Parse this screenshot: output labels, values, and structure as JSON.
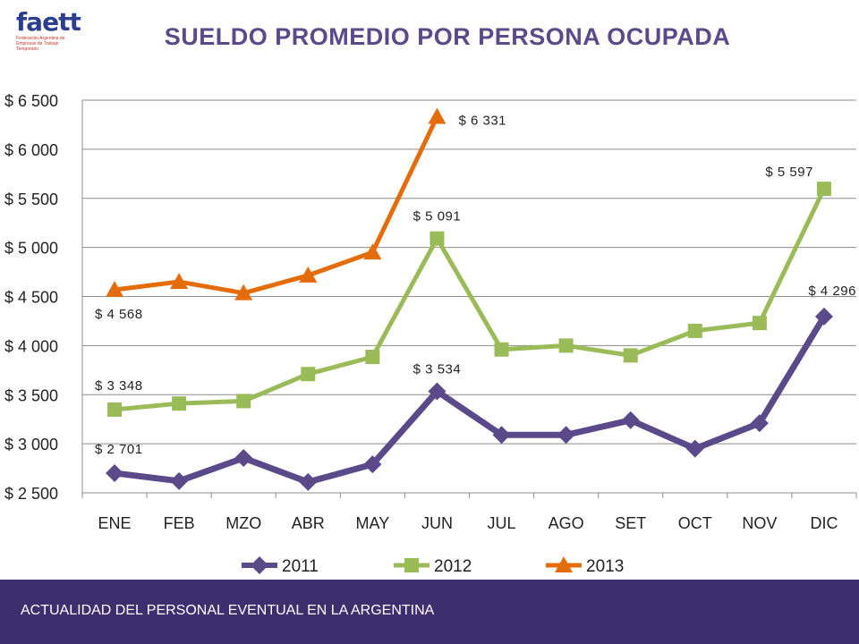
{
  "logo": {
    "word": "faett",
    "subtitle": "Federación Argentina de Empresas de Trabajo Temporario"
  },
  "title": "SUELDO PROMEDIO POR PERSONA OCUPADA",
  "footer": {
    "text": "ACTUALIDAD DEL PERSONAL EVENTUAL EN LA ARGENTINA"
  },
  "colors": {
    "title": "#5b4a8a",
    "footer_bg": "#3b2f6e",
    "series_2011": "#5b4a8a",
    "series_2012": "#9bbb59",
    "series_2013": "#e46c0a"
  },
  "chart_data": {
    "type": "line",
    "title": "SUELDO PROMEDIO POR PERSONA OCUPADA",
    "categories": [
      "ENE",
      "FEB",
      "MZO",
      "ABR",
      "MAY",
      "JUN",
      "JUL",
      "AGO",
      "SET",
      "OCT",
      "NOV",
      "DIC"
    ],
    "y_ticks": [
      "$ 2 500",
      "$ 3 000",
      "$ 3 500",
      "$ 4 000",
      "$ 4 500",
      "$ 5 000",
      "$ 5 500",
      "$ 6 000",
      "$ 6 500"
    ],
    "ylim": [
      2500,
      6500
    ],
    "grid": "horizontal",
    "legend": "bottom",
    "series": [
      {
        "name": "2011",
        "color": "#5b4a8a",
        "marker": "diamond",
        "values": [
          2701,
          2620,
          2855,
          2610,
          2790,
          3534,
          3090,
          3090,
          3240,
          2950,
          3210,
          4296
        ]
      },
      {
        "name": "2012",
        "color": "#9bbb59",
        "marker": "square",
        "values": [
          3348,
          3410,
          3435,
          3710,
          3885,
          5091,
          3960,
          4000,
          3900,
          4150,
          4230,
          5597
        ]
      },
      {
        "name": "2013",
        "color": "#e46c0a",
        "marker": "triangle",
        "values": [
          4568,
          4650,
          4535,
          4715,
          4950,
          6331,
          null,
          null,
          null,
          null,
          null,
          null
        ]
      }
    ],
    "data_labels": [
      {
        "series": 2,
        "index": 0,
        "text": "$ 4 568",
        "pos": "below-left"
      },
      {
        "series": 2,
        "index": 5,
        "text": "$ 6 331",
        "pos": "right"
      },
      {
        "series": 1,
        "index": 0,
        "text": "$ 3 348",
        "pos": "above-left"
      },
      {
        "series": 1,
        "index": 5,
        "text": "$ 5 091",
        "pos": "above"
      },
      {
        "series": 1,
        "index": 11,
        "text": "$ 5 597",
        "pos": "above-left"
      },
      {
        "series": 0,
        "index": 0,
        "text": "$ 2 701",
        "pos": "above-left"
      },
      {
        "series": 0,
        "index": 5,
        "text": "$ 3 534",
        "pos": "above"
      },
      {
        "series": 0,
        "index": 11,
        "text": "$ 4 296",
        "pos": "above-left"
      }
    ]
  }
}
